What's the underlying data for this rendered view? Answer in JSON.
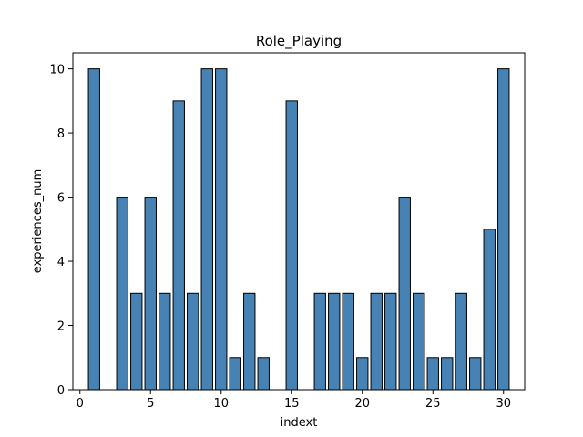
{
  "chart_data": {
    "type": "bar",
    "title": "Role_Playing",
    "xlabel": "indext",
    "ylabel": "experiences_num",
    "x": [
      1,
      3,
      4,
      5,
      6,
      7,
      8,
      9,
      10,
      11,
      12,
      13,
      15,
      17,
      18,
      19,
      20,
      21,
      22,
      23,
      24,
      25,
      26,
      27,
      28,
      29,
      30
    ],
    "values": [
      10,
      6,
      3,
      6,
      3,
      9,
      3,
      10,
      10,
      1,
      3,
      1,
      9,
      3,
      3,
      3,
      1,
      3,
      3,
      6,
      3,
      1,
      1,
      3,
      1,
      5,
      10
    ],
    "xlim": [
      -0.5,
      31.5
    ],
    "ylim": [
      0,
      10.5
    ],
    "xticks": [
      0,
      5,
      10,
      15,
      20,
      25,
      30
    ],
    "yticks": [
      0,
      2,
      4,
      6,
      8,
      10
    ],
    "bar_color": "#4682b4",
    "edge_color": "#000000",
    "grid": false,
    "legend": "none"
  }
}
